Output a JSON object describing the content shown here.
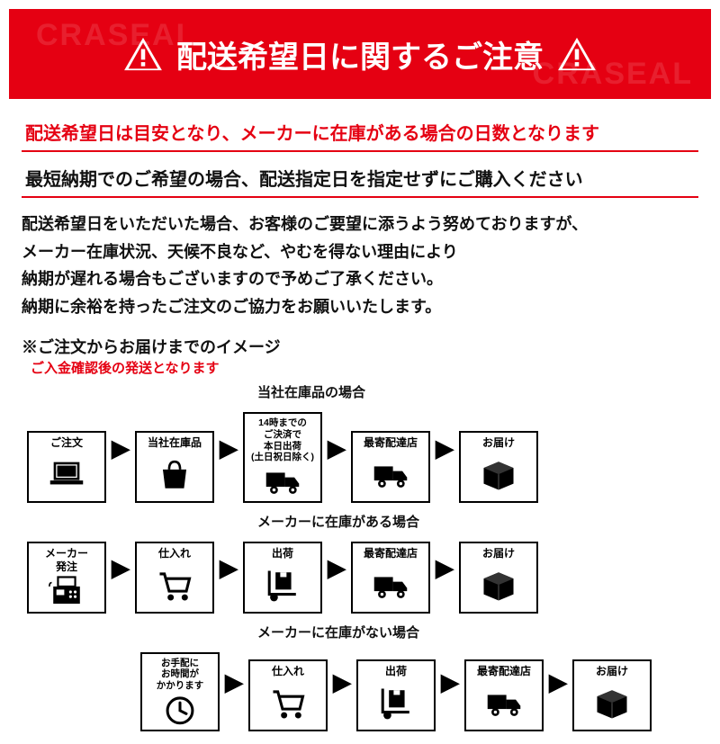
{
  "colors": {
    "brand_red": "#e50012",
    "black": "#000000",
    "white": "#ffffff"
  },
  "header": {
    "title": "配送希望日に関するご注意",
    "watermark": "CRASEAL"
  },
  "highlighted": {
    "line1": "配送希望日は目安となり、メーカーに在庫がある場合の日数となります",
    "line2": "最短納期でのご希望の場合、配送指定日を指定せずにご購入ください"
  },
  "body": {
    "p1": "配送希望日をいただいた場合、お客様のご要望に添うよう努めておりますが、",
    "p2": "メーカー在庫状況、天候不良など、やむを得ない理由により",
    "p3": "納期が遅れる場合もございますので予めご了承ください。",
    "p4": "納期に余裕を持ったご注文のご協力をお願いいたします。"
  },
  "timeline": {
    "heading": "※ご注文からお届けまでのイメージ",
    "note": "ご入金確認後の発送となります",
    "order_label": "ご注文",
    "maker_order_label": "メーカー\n発注",
    "cases": [
      {
        "title": "当社在庫品の場合",
        "steps": [
          {
            "label": "当社在庫品",
            "icon": "bag"
          },
          {
            "label": "14時までの\nご決済で\n本日出荷\n(土日祝日除く)",
            "icon": "truck",
            "small": true
          },
          {
            "label": "最寄配達店",
            "icon": "truck"
          },
          {
            "label": "お届け",
            "icon": "box"
          }
        ]
      },
      {
        "title": "メーカーに在庫がある場合",
        "steps": [
          {
            "label": "仕入れ",
            "icon": "cart"
          },
          {
            "label": "出荷",
            "icon": "dolly"
          },
          {
            "label": "最寄配達店",
            "icon": "truck"
          },
          {
            "label": "お届け",
            "icon": "box"
          }
        ]
      },
      {
        "title": "メーカーに在庫がない場合",
        "steps": [
          {
            "label": "お手配に\nお時間が\nかかります",
            "icon": "clock",
            "small": true
          },
          {
            "label": "仕入れ",
            "icon": "cart"
          },
          {
            "label": "出荷",
            "icon": "dolly"
          },
          {
            "label": "最寄配達店",
            "icon": "truck"
          },
          {
            "label": "お届け",
            "icon": "box"
          }
        ]
      }
    ]
  }
}
